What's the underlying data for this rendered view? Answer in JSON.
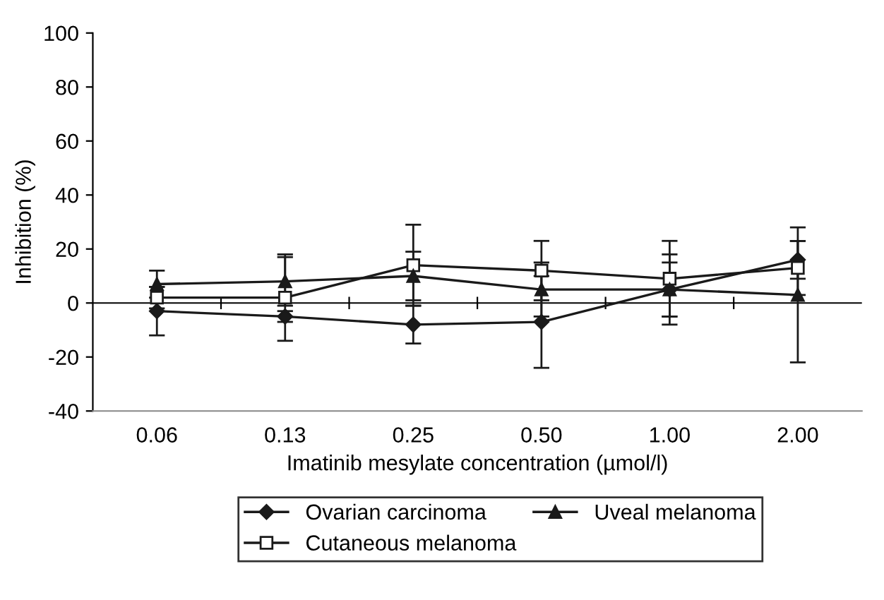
{
  "chart_data": {
    "type": "line",
    "xlabel": "Imatinib mesylate concentration (µmol/l)",
    "ylabel": "Inhibition (%)",
    "categories": [
      "0.06",
      "0.13",
      "0.25",
      "0.50",
      "1.00",
      "2.00"
    ],
    "ylim": [
      -40,
      100
    ],
    "yticks": [
      -40,
      -20,
      0,
      20,
      40,
      60,
      80,
      100
    ],
    "grid": false,
    "legend": "bottom",
    "ref_lines": [
      {
        "axis": "y",
        "value": 0,
        "color": "#000000"
      }
    ],
    "series": [
      {
        "name": "Ovarian carcinoma",
        "color": "#1a1a1a",
        "marker": "diamond",
        "values": [
          -3,
          -5,
          -8,
          -7,
          5,
          16
        ],
        "errors": [
          9,
          2,
          7,
          17,
          13,
          7
        ]
      },
      {
        "name": "Cutaneous melanoma",
        "color": "#1a1a1a",
        "marker": "square",
        "values": [
          2,
          2,
          14,
          12,
          9,
          13
        ],
        "errors": [
          4,
          16,
          15,
          11,
          14,
          10
        ]
      },
      {
        "name": "Uveal melanoma",
        "color": "#1a1a1a",
        "marker": "triangle",
        "values": [
          7,
          8,
          10,
          5,
          5,
          3
        ],
        "errors": [
          5,
          9,
          9,
          10,
          10,
          25
        ]
      }
    ]
  }
}
